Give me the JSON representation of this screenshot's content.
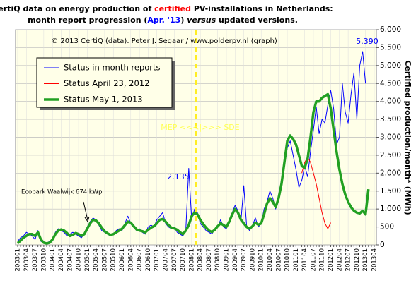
{
  "chart_data": {
    "type": "line",
    "title": [
      [
        {
          "text": "CertiQ data on energy production of ",
          "color": "#000000"
        },
        {
          "text": "certified",
          "color": "#ff0000"
        },
        {
          "text": " PV-installations in Netherlands:",
          "color": "#000000"
        }
      ],
      [
        {
          "text": "month report progression (",
          "color": "#000000"
        },
        {
          "text": "Apr. '13",
          "color": "#0000ff"
        },
        {
          "text": ") ",
          "color": "#000000"
        },
        {
          "text": "versus",
          "color": "#000000",
          "style": "italic"
        },
        {
          "text": " updated versions.",
          "color": "#000000"
        }
      ]
    ],
    "y_label": "Certified production/month* (MWh)",
    "annotations": [
      {
        "text": "© 2013 CertiQ (data). Peter J. Segaar / www.polderpv.nl (graph)",
        "color": "#000000"
      },
      {
        "text": "2.135",
        "color": "#0000ff"
      },
      {
        "text": "5.390",
        "color": "#0000ff"
      },
      {
        "text": "MEP <<<|>>> SDE",
        "color": "#ffff55"
      },
      {
        "text": "Ecopark Waalwijk 674 kWp",
        "color": "#000000"
      }
    ],
    "categories": [
      "200301",
      null,
      null,
      "200304",
      null,
      null,
      "200307",
      null,
      null,
      "200310",
      null,
      null,
      "200401",
      null,
      null,
      "200404",
      null,
      null,
      "200407",
      null,
      null,
      "200410",
      null,
      null,
      "200501",
      null,
      null,
      "200504",
      null,
      null,
      "200507",
      null,
      null,
      "200510",
      null,
      null,
      "200601",
      null,
      null,
      "200604",
      null,
      null,
      "200607",
      null,
      null,
      "200610",
      null,
      null,
      "200701",
      null,
      null,
      "200704",
      null,
      null,
      "200707",
      null,
      null,
      "200710",
      null,
      null,
      "200801",
      null,
      null,
      "200804",
      null,
      null,
      "200807",
      null,
      null,
      "200810",
      null,
      null,
      "200901",
      null,
      null,
      "200904",
      null,
      null,
      "200907",
      null,
      null,
      "200910",
      null,
      null,
      "201001",
      null,
      null,
      "201004",
      null,
      null,
      "201007",
      null,
      null,
      "201010",
      null,
      null,
      "201101",
      null,
      null,
      "201104",
      null,
      null,
      "201107",
      null,
      null,
      "201110",
      null,
      null,
      "201201",
      null,
      null,
      "201204",
      null,
      null,
      "201207",
      null,
      null,
      "201210",
      null,
      null,
      "201301",
      null,
      null,
      "201304"
    ],
    "series": [
      {
        "name": "Status in month reports",
        "color": "#0000ff",
        "line_width": 1,
        "values": [
          100,
          200,
          250,
          350,
          300,
          250,
          150,
          400,
          100,
          50,
          50,
          100,
          150,
          350,
          450,
          400,
          350,
          250,
          300,
          350,
          300,
          250,
          200,
          300,
          500,
          650,
          750,
          700,
          550,
          400,
          350,
          300,
          250,
          300,
          400,
          450,
          400,
          600,
          800,
          600,
          500,
          400,
          450,
          350,
          300,
          500,
          550,
          500,
          700,
          800,
          900,
          600,
          500,
          450,
          500,
          350,
          300,
          250,
          450,
          2135,
          700,
          1000,
          900,
          600,
          500,
          400,
          350,
          300,
          450,
          500,
          700,
          500,
          450,
          700,
          900,
          1100,
          950,
          650,
          1650,
          500,
          400,
          550,
          750,
          500,
          600,
          1000,
          1200,
          1500,
          1300,
          1000,
          1400,
          1800,
          2200,
          2700,
          2900,
          2500,
          2100,
          1600,
          1800,
          2200,
          1900,
          2600,
          3200,
          3850,
          3100,
          3500,
          3400,
          3900,
          4300,
          3800,
          2800,
          3000,
          4500,
          3700,
          3400,
          4200,
          4800,
          3500,
          5000,
          5390,
          4500,
          null,
          null,
          null
        ]
      },
      {
        "name": "Status April 23, 2012",
        "color": "#ff0000",
        "line_width": 1,
        "values": [
          null,
          null,
          null,
          null,
          null,
          null,
          null,
          null,
          null,
          null,
          null,
          null,
          null,
          null,
          null,
          null,
          null,
          null,
          null,
          null,
          null,
          null,
          null,
          null,
          null,
          null,
          null,
          null,
          null,
          null,
          null,
          null,
          null,
          null,
          null,
          null,
          null,
          null,
          null,
          null,
          null,
          null,
          null,
          null,
          null,
          null,
          null,
          null,
          null,
          null,
          null,
          null,
          null,
          null,
          null,
          null,
          null,
          null,
          null,
          null,
          null,
          null,
          null,
          null,
          null,
          null,
          null,
          null,
          null,
          null,
          null,
          null,
          null,
          null,
          null,
          null,
          null,
          null,
          null,
          null,
          null,
          null,
          null,
          null,
          null,
          null,
          null,
          null,
          null,
          null,
          null,
          null,
          null,
          null,
          null,
          null,
          null,
          null,
          2000,
          2300,
          2450,
          2300,
          2000,
          1700,
          1300,
          900,
          600,
          450,
          620,
          null,
          null,
          null,
          null,
          null,
          null,
          null,
          null,
          null,
          null,
          null,
          null,
          null,
          null,
          null
        ]
      },
      {
        "name": "Status May 1, 2013",
        "color": "#22a022",
        "line_width": 3.5,
        "values": [
          50,
          120,
          200,
          250,
          300,
          300,
          250,
          350,
          150,
          60,
          40,
          60,
          150,
          300,
          400,
          430,
          400,
          330,
          250,
          280,
          330,
          300,
          250,
          300,
          450,
          600,
          700,
          680,
          600,
          480,
          380,
          320,
          280,
          300,
          350,
          400,
          450,
          550,
          650,
          620,
          520,
          430,
          400,
          380,
          350,
          420,
          480,
          520,
          600,
          700,
          720,
          650,
          550,
          480,
          460,
          420,
          350,
          300,
          400,
          550,
          800,
          900,
          850,
          700,
          580,
          480,
          400,
          360,
          420,
          520,
          600,
          550,
          500,
          650,
          850,
          1000,
          900,
          700,
          600,
          500,
          450,
          520,
          620,
          560,
          600,
          850,
          1150,
          1300,
          1200,
          1050,
          1300,
          1700,
          2300,
          2900,
          3050,
          2950,
          2800,
          2500,
          2200,
          2150,
          2400,
          3000,
          3700,
          4000,
          4000,
          4100,
          4150,
          4200,
          3800,
          3200,
          2600,
          2100,
          1700,
          1400,
          1200,
          1050,
          950,
          900,
          880,
          950,
          850,
          1550,
          null,
          null
        ]
      }
    ],
    "ylim": [
      0,
      6000
    ],
    "yticks": [
      0,
      500,
      {
        "value": 1000,
        "label": "1.000"
      },
      {
        "value": 1500,
        "label": "1.500"
      },
      {
        "value": 2000,
        "label": "2.000"
      },
      {
        "value": 2500,
        "label": "2.500"
      },
      {
        "value": 3000,
        "label": "3.000"
      },
      {
        "value": 3500,
        "label": "3.500"
      },
      {
        "value": 4000,
        "label": "4.000"
      },
      {
        "value": 4500,
        "label": "4.500"
      },
      {
        "value": 5000,
        "label": "5.000"
      },
      {
        "value": 5500,
        "label": "5.500"
      },
      {
        "value": 6000,
        "label": "6.000"
      }
    ],
    "grid": true,
    "legend": "upper left",
    "background": "#ffffe8"
  }
}
